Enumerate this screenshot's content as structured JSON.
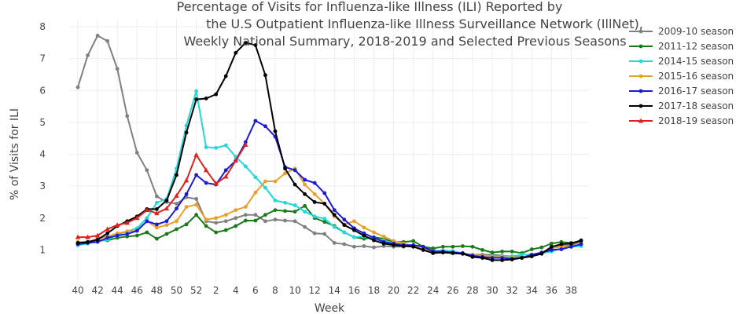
{
  "chart_data": {
    "type": "line",
    "title_lines": [
      "Percentage of Visits for Influenza-like Illness (ILI) Reported by",
      "the U.S Outpatient Influenza-like Illness Surveillance Network (IllNet),",
      "Weekly National Summary, 2018-2019 and Selected Previous Seasons"
    ],
    "xlabel": "Week",
    "ylabel": "% of Visits for ILI",
    "ylim": [
      0,
      8
    ],
    "y_ticks": [
      1,
      2,
      3,
      4,
      5,
      6,
      7,
      8
    ],
    "x_ticks": [
      "40",
      "42",
      "44",
      "46",
      "48",
      "50",
      "52",
      "2",
      "4",
      "6",
      "8",
      "10",
      "12",
      "14",
      "16",
      "18",
      "20",
      "22",
      "24",
      "26",
      "28",
      "30",
      "32",
      "34",
      "36",
      "38"
    ],
    "categories": [
      "40",
      "41",
      "42",
      "43",
      "44",
      "45",
      "46",
      "47",
      "48",
      "49",
      "50",
      "51",
      "52",
      "1",
      "2",
      "3",
      "4",
      "5",
      "6",
      "7",
      "8",
      "9",
      "10",
      "11",
      "12",
      "13",
      "14",
      "15",
      "16",
      "17",
      "18",
      "19",
      "20",
      "21",
      "22",
      "23",
      "24",
      "25",
      "26",
      "27",
      "28",
      "29",
      "30",
      "31",
      "32",
      "33",
      "34",
      "35",
      "36",
      "37",
      "38",
      "39"
    ],
    "grid": true,
    "legend_position": "right",
    "series": [
      {
        "name": "2009-10 season",
        "color": "#808080",
        "marker": "circle",
        "values": [
          6.1,
          7.1,
          7.72,
          7.55,
          6.68,
          5.2,
          4.05,
          3.5,
          2.68,
          2.5,
          2.45,
          2.65,
          2.6,
          1.9,
          1.85,
          1.9,
          2.0,
          2.1,
          2.1,
          1.9,
          1.95,
          1.92,
          1.9,
          1.72,
          1.52,
          1.5,
          1.22,
          1.18,
          1.1,
          1.12,
          1.08,
          1.12,
          1.1,
          1.1,
          1.15,
          1.1,
          1.0,
          0.92,
          0.92,
          0.88,
          0.85,
          0.85,
          0.85,
          0.82,
          0.8,
          0.78,
          0.8,
          0.9,
          1.08,
          1.12,
          1.15,
          1.25
        ]
      },
      {
        "name": "2011-12 season",
        "color": "#1a7a1a",
        "marker": "circle",
        "values": [
          1.2,
          1.25,
          1.3,
          1.3,
          1.38,
          1.42,
          1.45,
          1.55,
          1.35,
          1.5,
          1.65,
          1.8,
          2.1,
          1.75,
          1.55,
          1.62,
          1.75,
          1.92,
          1.92,
          2.1,
          2.25,
          2.22,
          2.2,
          2.38,
          2.0,
          1.88,
          1.75,
          1.55,
          1.4,
          1.35,
          1.4,
          1.35,
          1.25,
          1.25,
          1.28,
          1.1,
          1.05,
          1.1,
          1.1,
          1.12,
          1.1,
          1.0,
          0.92,
          0.95,
          0.95,
          0.9,
          1.02,
          1.08,
          1.2,
          1.25,
          1.22,
          1.28
        ]
      },
      {
        "name": "2014-15 season",
        "color": "#22d8d8",
        "marker": "circle",
        "values": [
          1.15,
          1.2,
          1.28,
          1.32,
          1.48,
          1.58,
          1.68,
          2.0,
          2.48,
          2.6,
          3.55,
          4.9,
          5.98,
          4.22,
          4.2,
          4.28,
          3.92,
          3.62,
          3.28,
          2.95,
          2.55,
          2.48,
          2.4,
          2.2,
          2.05,
          1.98,
          1.72,
          1.55,
          1.4,
          1.42,
          1.35,
          1.3,
          1.18,
          1.18,
          1.12,
          1.0,
          0.96,
          0.98,
          0.96,
          0.9,
          0.82,
          0.78,
          0.8,
          0.8,
          0.8,
          0.85,
          0.85,
          0.9,
          0.95,
          1.05,
          1.1,
          1.12
        ]
      },
      {
        "name": "2015-16 season",
        "color": "#e8a02a",
        "marker": "circle",
        "values": [
          1.25,
          1.25,
          1.35,
          1.42,
          1.52,
          1.58,
          1.6,
          1.9,
          1.7,
          1.78,
          1.9,
          2.35,
          2.42,
          1.95,
          2.0,
          2.1,
          2.25,
          2.35,
          2.8,
          3.15,
          3.15,
          3.4,
          3.55,
          3.05,
          2.75,
          2.45,
          2.05,
          1.8,
          1.9,
          1.7,
          1.55,
          1.42,
          1.28,
          1.2,
          1.12,
          1.02,
          0.95,
          0.92,
          0.9,
          0.88,
          0.85,
          0.8,
          0.78,
          0.78,
          0.76,
          0.75,
          0.82,
          0.92,
          1.05,
          1.1,
          1.1,
          1.18
        ]
      },
      {
        "name": "2016-17 season",
        "color": "#1a1ad8",
        "marker": "circle",
        "values": [
          1.18,
          1.22,
          1.25,
          1.38,
          1.45,
          1.5,
          1.6,
          1.9,
          1.8,
          1.9,
          2.3,
          2.75,
          3.35,
          3.1,
          3.05,
          3.5,
          3.8,
          4.38,
          5.05,
          4.88,
          4.55,
          3.6,
          3.5,
          3.2,
          3.1,
          2.78,
          2.25,
          1.95,
          1.68,
          1.52,
          1.38,
          1.25,
          1.2,
          1.15,
          1.15,
          1.1,
          0.95,
          0.95,
          0.92,
          0.9,
          0.82,
          0.78,
          0.75,
          0.75,
          0.72,
          0.75,
          0.85,
          0.92,
          1.0,
          1.02,
          1.1,
          1.18
        ]
      },
      {
        "name": "2017-18 season",
        "color": "#000000",
        "marker": "circle",
        "values": [
          1.22,
          1.25,
          1.32,
          1.52,
          1.75,
          1.9,
          2.05,
          2.28,
          2.28,
          2.55,
          3.35,
          4.68,
          5.72,
          5.75,
          5.88,
          6.45,
          7.18,
          7.5,
          7.42,
          6.48,
          4.72,
          3.55,
          3.05,
          2.75,
          2.5,
          2.45,
          2.1,
          1.78,
          1.62,
          1.45,
          1.3,
          1.2,
          1.15,
          1.12,
          1.1,
          1.0,
          0.9,
          0.92,
          0.9,
          0.88,
          0.78,
          0.75,
          0.68,
          0.68,
          0.7,
          0.75,
          0.8,
          0.88,
          1.1,
          1.18,
          1.2,
          1.3
        ]
      },
      {
        "name": "2018-19 season",
        "color": "#e02020",
        "marker": "triangle",
        "values": [
          1.4,
          1.4,
          1.45,
          1.65,
          1.78,
          1.85,
          2.0,
          2.25,
          2.15,
          2.3,
          2.7,
          3.18,
          3.98,
          3.5,
          3.08,
          3.3,
          3.8,
          4.3,
          null,
          null,
          null,
          null,
          null,
          null,
          null,
          null,
          null,
          null,
          null,
          null,
          null,
          null,
          null,
          null,
          null,
          null,
          null,
          null,
          null,
          null,
          null,
          null,
          null,
          null,
          null,
          null,
          null,
          null,
          null,
          null,
          null,
          null
        ]
      }
    ]
  }
}
